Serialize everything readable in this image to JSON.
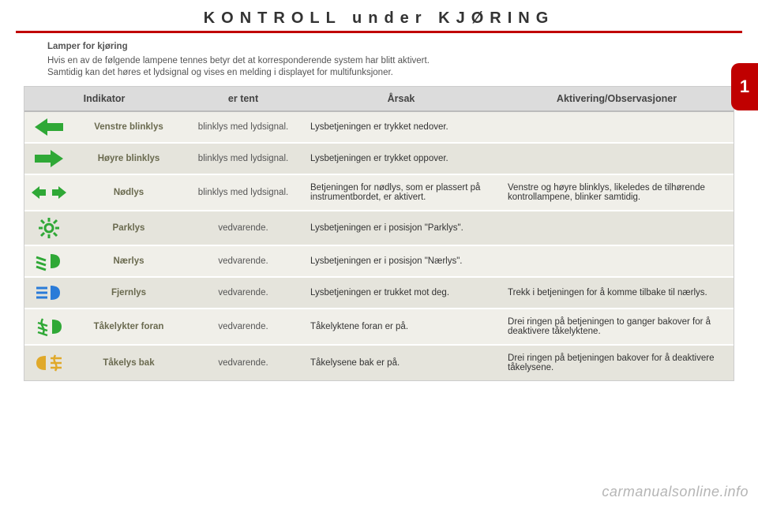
{
  "page": {
    "title": "KONTROLL under KJØRING",
    "badge": "1"
  },
  "intro": {
    "title": "Lamper for kjøring",
    "line1": "Hvis en av de følgende lampene tennes betyr det at korresponderende system har blitt aktivert.",
    "line2": "Samtidig kan det høres et lydsignal og vises en melding i displayet for multifunksjoner."
  },
  "headers": {
    "indikator": "Indikator",
    "tent": "er tent",
    "arsak": "Årsak",
    "akt": "Aktivering/Observasjoner"
  },
  "colors": {
    "green": "#2fa836",
    "blue": "#2a7bd8",
    "amber": "#e0a92a"
  },
  "rows": [
    {
      "icon": "arrow-left",
      "color": "green",
      "indicator": "Venstre blinklys",
      "tent": "blinklys med lydsignal.",
      "arsak": "Lysbetjeningen er trykket nedover.",
      "akt": ""
    },
    {
      "icon": "arrow-right",
      "color": "green",
      "indicator": "Høyre blinklys",
      "tent": "blinklys med lydsignal.",
      "arsak": "Lysbetjeningen er trykket oppover.",
      "akt": ""
    },
    {
      "icon": "hazard",
      "color": "green",
      "indicator": "Nødlys",
      "tent": "blinklys med lydsignal.",
      "arsak": "Betjeningen for nødlys, som er plassert på instrumentbordet, er aktivert.",
      "akt": "Venstre og høyre blinklys, likeledes de tilhørende kontrollampene, blinker samtidig."
    },
    {
      "icon": "parklys",
      "color": "green",
      "indicator": "Parklys",
      "tent": "vedvarende.",
      "arsak": "Lysbetjeningen er i posisjon \"Parklys\".",
      "akt": ""
    },
    {
      "icon": "lowbeam",
      "color": "green",
      "indicator": "Nærlys",
      "tent": "vedvarende.",
      "arsak": "Lysbetjeningen er i posisjon \"Nærlys\".",
      "akt": ""
    },
    {
      "icon": "highbeam",
      "color": "blue",
      "indicator": "Fjernlys",
      "tent": "vedvarende.",
      "arsak": "Lysbetjeningen er trukket mot deg.",
      "akt": "Trekk i betjeningen for å komme tilbake til nærlys."
    },
    {
      "icon": "fogfront",
      "color": "green",
      "indicator": "Tåkelykter foran",
      "tent": "vedvarende.",
      "arsak": "Tåkelyktene foran er på.",
      "akt": "Drei ringen på betjeningen to ganger bakover for å deaktivere tåkelyktene."
    },
    {
      "icon": "fogrear",
      "color": "amber",
      "indicator": "Tåkelys bak",
      "tent": "vedvarende.",
      "arsak": "Tåkelysene bak er på.",
      "akt": "Drei ringen på betjeningen bakover for å deaktivere tåkelysene."
    }
  ],
  "watermark": "carmanualsonline.info"
}
